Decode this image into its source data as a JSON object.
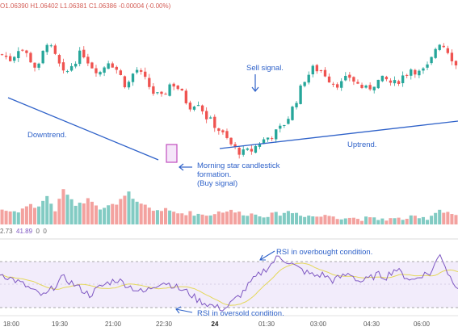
{
  "ohlc_readout": "O1.06390  H1.06402  L1.06381  C1.06386  -0.00004 (-0.00%)",
  "rsi_readout": {
    "prefix": "2.73",
    "v1": "41.89",
    "z1": "0",
    "z2": "0"
  },
  "colors": {
    "up": "#26a69a",
    "down": "#ef5350",
    "vol_up": "#82cbc3",
    "vol_down": "#f3a29f",
    "annotation": "#2f62c9",
    "rsi_line": "#7e57c2",
    "rsi_ma": "#e4d85a",
    "rsi_band": "#f2ecfb",
    "highlight": "#c04dbf"
  },
  "annotations": {
    "downtrend": "Downtrend.",
    "sell_signal": "Sell signal.",
    "uptrend": "Uptrend.",
    "morning_star_1": "Morning star candlestick",
    "morning_star_2": "formation.",
    "morning_star_3": "(Buy signal)",
    "rsi_overbought": "RSI in overbought condition.",
    "rsi_oversold": "RSI in oversold condition."
  },
  "chart_data": {
    "type": "candlestick",
    "instrument_readout": "O1.06390 H1.06402 L1.06381 C1.06386 -0.00004 (-0.00%)",
    "x_tick_labels": [
      "18:00",
      "19:30",
      "21:00",
      "22:30",
      "24",
      "01:30",
      "03:00",
      "04:30",
      "06:00"
    ],
    "price_path": [
      0.78,
      0.74,
      0.84,
      0.76,
      0.66,
      0.88,
      0.76,
      0.62,
      0.72,
      0.8,
      0.7,
      0.65,
      0.74,
      0.66,
      0.54,
      0.68,
      0.6,
      0.5,
      0.46,
      0.58,
      0.52,
      0.4,
      0.44,
      0.32,
      0.26,
      0.18,
      0.1,
      0.06,
      0.08,
      0.14,
      0.18,
      0.22,
      0.3,
      0.44,
      0.6,
      0.68,
      0.66,
      0.58,
      0.56,
      0.62,
      0.56,
      0.52,
      0.58,
      0.6,
      0.56,
      0.62,
      0.68,
      0.64,
      0.7,
      0.88,
      0.82,
      0.7
    ],
    "volume_profile": [
      0.22,
      0.18,
      0.2,
      0.3,
      0.25,
      0.45,
      0.2,
      0.6,
      0.3,
      0.35,
      0.4,
      0.25,
      0.3,
      0.28,
      0.55,
      0.32,
      0.28,
      0.2,
      0.22,
      0.18,
      0.15,
      0.16,
      0.14,
      0.12,
      0.16,
      0.2,
      0.18,
      0.15,
      0.14,
      0.12,
      0.12,
      0.14,
      0.18,
      0.16,
      0.12,
      0.1,
      0.1,
      0.12,
      0.08,
      0.08,
      0.06,
      0.06,
      0.05,
      0.06,
      0.05,
      0.06,
      0.08,
      0.06,
      0.08,
      0.22,
      0.18,
      0.12
    ],
    "rsi_path": [
      0.62,
      0.55,
      0.48,
      0.4,
      0.3,
      0.24,
      0.4,
      0.55,
      0.46,
      0.36,
      0.26,
      0.38,
      0.46,
      0.52,
      0.44,
      0.36,
      0.3,
      0.4,
      0.48,
      0.44,
      0.36,
      0.3,
      0.18,
      0.12,
      0.06,
      0.03,
      0.16,
      0.3,
      0.48,
      0.62,
      0.74,
      0.9,
      0.82,
      0.72,
      0.64,
      0.58,
      0.6,
      0.5,
      0.56,
      0.62,
      0.48,
      0.52,
      0.6,
      0.56,
      0.7,
      0.58,
      0.5,
      0.6,
      0.62,
      0.96,
      0.58,
      0.4
    ],
    "rsi_levels": {
      "overbought": 70,
      "oversold": 30
    },
    "annotations": [
      "Downtrend.",
      "Sell signal.",
      "Uptrend.",
      "Morning star candlestick formation. (Buy signal)",
      "RSI in overbought condition.",
      "RSI in oversold condition."
    ]
  }
}
